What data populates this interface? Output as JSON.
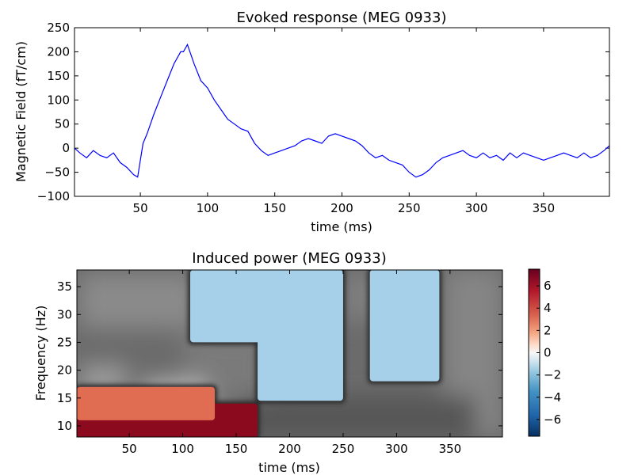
{
  "chart_data": [
    {
      "type": "line",
      "title": "Evoked response (MEG 0933)",
      "xlabel": "time (ms)",
      "ylabel": "Magnetic Field (fT/cm)",
      "xlim": [
        1,
        399
      ],
      "ylim": [
        -100,
        250
      ],
      "xticks": [
        50,
        100,
        150,
        200,
        250,
        300,
        350
      ],
      "yticks": [
        -100,
        -50,
        0,
        50,
        100,
        150,
        200,
        250
      ],
      "color": "#0000ff",
      "series": [
        {
          "x": [
            1,
            5,
            10,
            15,
            20,
            25,
            30,
            35,
            40,
            45,
            48,
            52,
            55,
            60,
            65,
            70,
            75,
            80,
            82,
            85,
            90,
            95,
            100,
            105,
            110,
            115,
            120,
            125,
            130,
            135,
            140,
            145,
            150,
            155,
            160,
            165,
            170,
            175,
            180,
            185,
            190,
            195,
            200,
            205,
            210,
            215,
            220,
            225,
            230,
            235,
            240,
            245,
            250,
            255,
            260,
            265,
            270,
            275,
            280,
            285,
            290,
            295,
            300,
            305,
            310,
            315,
            320,
            325,
            330,
            335,
            340,
            345,
            350,
            355,
            360,
            365,
            370,
            375,
            380,
            385,
            390,
            395,
            399
          ],
          "y": [
            0,
            -10,
            -20,
            -5,
            -15,
            -20,
            -10,
            -30,
            -40,
            -55,
            -60,
            10,
            30,
            70,
            105,
            140,
            175,
            200,
            200,
            215,
            175,
            140,
            125,
            100,
            80,
            60,
            50,
            40,
            35,
            10,
            -5,
            -15,
            -10,
            -5,
            0,
            5,
            15,
            20,
            15,
            10,
            25,
            30,
            25,
            20,
            15,
            5,
            -10,
            -20,
            -15,
            -25,
            -30,
            -35,
            -50,
            -60,
            -55,
            -45,
            -30,
            -20,
            -15,
            -10,
            -5,
            -15,
            -20,
            -10,
            -20,
            -15,
            -25,
            -10,
            -20,
            -10,
            -15,
            -20,
            -25,
            -20,
            -15,
            -10,
            -15,
            -20,
            -10,
            -20,
            -15,
            -5,
            5
          ]
        }
      ]
    },
    {
      "type": "heatmap",
      "title": "Induced power (MEG 0933)",
      "xlabel": "time (ms)",
      "ylabel": "Frequency (Hz)",
      "xlim": [
        1,
        399
      ],
      "ylim": [
        8,
        38
      ],
      "xticks": [
        50,
        100,
        150,
        200,
        250,
        300,
        350
      ],
      "yticks": [
        10,
        15,
        20,
        25,
        30,
        35
      ],
      "colorbar": {
        "min": -7.5,
        "max": 7.5,
        "ticks": [
          6,
          4,
          2,
          0,
          -2,
          -4,
          -6
        ],
        "tick_labels": [
          "6",
          "4",
          "2",
          "0",
          "−2",
          "−4",
          "−6"
        ]
      },
      "background": "greyscale (non-significant)",
      "significant_regions": [
        {
          "value": 6,
          "color": "#8b0a1e",
          "time": [
            1,
            170
          ],
          "freq": [
            8,
            14
          ]
        },
        {
          "value": 4,
          "color": "#e06c52",
          "time": [
            1,
            130
          ],
          "freq": [
            11,
            17
          ]
        },
        {
          "value": -3,
          "color": "#a6d0ea",
          "time": [
            107,
            183
          ],
          "freq": [
            25,
            38
          ]
        },
        {
          "value": -3,
          "color": "#a6d0ea",
          "time": [
            170,
            250
          ],
          "freq": [
            14.5,
            38
          ]
        },
        {
          "value": -3,
          "color": "#a6d0ea",
          "time": [
            275,
            340
          ],
          "freq": [
            18,
            38
          ]
        }
      ]
    }
  ]
}
